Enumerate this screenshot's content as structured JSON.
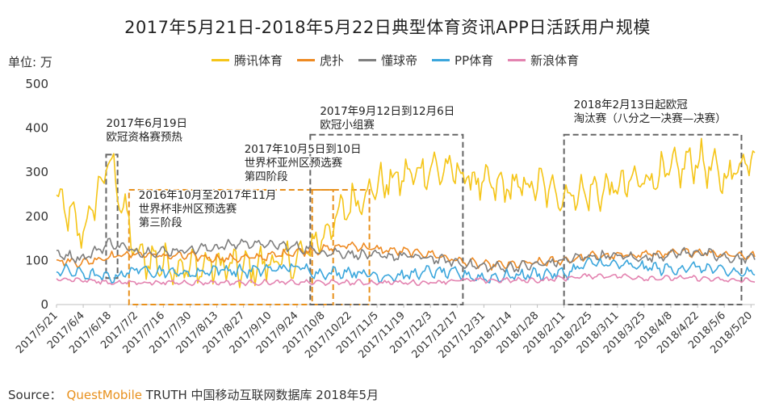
{
  "title": "2017年5月21日-2018年5月22日典型体育资讯APP日活跃用户规模",
  "unit_label": "单位: 万",
  "legend": [
    {
      "name": "腾讯体育",
      "color": "#f5c518"
    },
    {
      "name": "虎扑",
      "color": "#ee8a22"
    },
    {
      "name": "懂球帝",
      "color": "#7f7f7f"
    },
    {
      "name": "PP体育",
      "color": "#3ba6dc"
    },
    {
      "name": "新浪体育",
      "color": "#e383b0"
    }
  ],
  "source": {
    "prefix": "Source：",
    "brand": "QuestMobile",
    "suffix": "TRUTH 中国移动互联网数据库 2018年5月"
  },
  "chart_data": {
    "type": "line",
    "title": "2017年5月21日-2018年5月22日典型体育资讯APP日活跃用户规模",
    "ylabel": "单位: 万",
    "ylim": [
      0,
      500
    ],
    "yticks": [
      0,
      100,
      200,
      300,
      400,
      500
    ],
    "x_start": "2017-05-21",
    "x_end": "2018-05-22",
    "x_tick_labels": [
      "2017/5/21",
      "2017/6/4",
      "2017/6/18",
      "2017/7/2",
      "2017/7/16",
      "2017/7/30",
      "2017/8/13",
      "2017/8/27",
      "2017/9/10",
      "2017/9/24",
      "2017/10/8",
      "2017/10/22",
      "2017/11/5",
      "2017/11/19",
      "2017/12/3",
      "2017/12/17",
      "2017/12/31",
      "2018/1/14",
      "2018/1/28",
      "2018/2/11",
      "2018/2/25",
      "2018/3/11",
      "2018/3/25",
      "2018/4/8",
      "2018/4/22",
      "2018/5/6",
      "2018/5/20"
    ],
    "series": [
      {
        "name": "腾讯体育",
        "color": "#f5c518",
        "values_at_ticks": [
          240,
          160,
          330,
          110,
          95,
          85,
          90,
          80,
          95,
          100,
          160,
          230,
          270,
          290,
          310,
          300,
          270,
          265,
          270,
          250,
          255,
          265,
          285,
          300,
          330,
          285,
          340
        ]
      },
      {
        "name": "虎扑",
        "color": "#ee8a22",
        "values_at_ticks": [
          100,
          95,
          110,
          115,
          110,
          110,
          105,
          105,
          110,
          120,
          125,
          135,
          125,
          120,
          115,
          100,
          90,
          90,
          95,
          100,
          110,
          110,
          115,
          115,
          120,
          115,
          110
        ]
      },
      {
        "name": "懂球帝",
        "color": "#7f7f7f",
        "values_at_ticks": [
          115,
          105,
          140,
          120,
          120,
          125,
          130,
          140,
          135,
          130,
          120,
          115,
          110,
          110,
          105,
          95,
          85,
          85,
          90,
          100,
          110,
          110,
          105,
          115,
          120,
          105,
          105
        ]
      },
      {
        "name": "PP体育",
        "color": "#3ba6dc",
        "values_at_ticks": [
          80,
          70,
          60,
          80,
          75,
          70,
          80,
          75,
          80,
          85,
          70,
          75,
          65,
          65,
          75,
          70,
          60,
          65,
          70,
          70,
          95,
          90,
          85,
          80,
          85,
          75,
          70
        ]
      },
      {
        "name": "新浪体育",
        "color": "#e383b0",
        "values_at_ticks": [
          60,
          55,
          50,
          50,
          50,
          50,
          50,
          50,
          50,
          50,
          50,
          50,
          50,
          50,
          50,
          55,
          55,
          55,
          55,
          60,
          65,
          65,
          60,
          60,
          60,
          55,
          55
        ]
      }
    ],
    "annotations": [
      {
        "lines": [
          "2017年6月19日",
          "欧冠资格赛预热"
        ],
        "style": "gray-dashed",
        "x_start": "2017-06-16",
        "x_end": "2017-06-22",
        "y_range": [
          60,
          340
        ]
      },
      {
        "lines": [
          "2016年10月至2017年11月",
          "世界杯非州区预选赛",
          "第三阶段"
        ],
        "style": "orange-dashed",
        "x_start": "2017-06-28",
        "x_end": "2017-11-01",
        "y_range": [
          0,
          260
        ]
      },
      {
        "lines": [
          "2017年10月5日到10日",
          "世界杯亚州区预选赛",
          "第四阶段"
        ],
        "style": "orange-dashed",
        "x_start": "2017-10-02",
        "x_end": "2017-10-13",
        "y_range": [
          0,
          260
        ]
      },
      {
        "lines": [
          "2017年9月12日到12月6日",
          "欧冠小组赛"
        ],
        "style": "gray-dashed",
        "x_start": "2017-10-01",
        "x_end": "2017-12-20",
        "y_range": [
          0,
          385
        ]
      },
      {
        "lines": [
          "2018年2月13日起欧冠",
          "淘汰赛（八分之一决赛—决赛）"
        ],
        "style": "gray-dashed",
        "x_start": "2018-02-11",
        "x_end": "2018-05-15",
        "y_range": [
          0,
          385
        ]
      }
    ]
  }
}
